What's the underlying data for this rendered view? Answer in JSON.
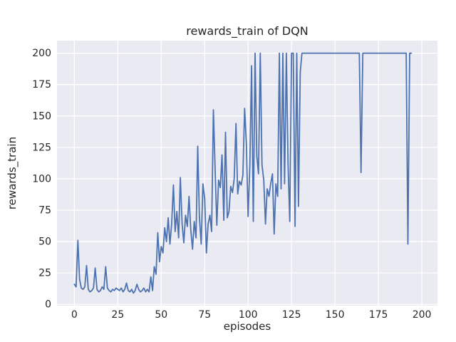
{
  "chart_data": {
    "type": "line",
    "title": "rewards_train of DQN",
    "xlabel": "episodes",
    "ylabel": "rewards_train",
    "x_ticks": [
      0,
      25,
      50,
      75,
      100,
      125,
      150,
      175,
      200
    ],
    "y_ticks": [
      0,
      25,
      50,
      75,
      100,
      125,
      150,
      175,
      200
    ],
    "xlim": [
      -10,
      209
    ],
    "ylim": [
      -1,
      210
    ],
    "grid": true,
    "legend": "none",
    "plot_bg": "#eaeaf2",
    "grid_color": "#ffffff",
    "line_color": "#4c72b0",
    "series": [
      {
        "name": "rewards_train",
        "x_start": 0,
        "x_step": 1,
        "values": [
          16,
          14,
          51,
          20,
          13,
          12,
          14,
          31,
          12,
          10,
          11,
          13,
          29,
          12,
          10,
          11,
          14,
          12,
          30,
          13,
          11,
          10,
          12,
          11,
          13,
          12,
          11,
          13,
          10,
          12,
          17,
          11,
          10,
          12,
          9,
          11,
          16,
          12,
          10,
          11,
          13,
          10,
          12,
          10,
          22,
          11,
          30,
          24,
          57,
          34,
          46,
          41,
          61,
          50,
          69,
          48,
          64,
          95,
          58,
          74,
          53,
          101,
          64,
          49,
          71,
          62,
          86,
          59,
          44,
          66,
          53,
          126,
          69,
          48,
          96,
          84,
          41,
          64,
          71,
          58,
          155,
          108,
          63,
          99,
          93,
          119,
          67,
          137,
          69,
          74,
          94,
          89,
          100,
          144,
          88,
          98,
          95,
          103,
          156,
          128,
          70,
          112,
          190,
          66,
          200,
          118,
          104,
          200,
          111,
          99,
          64,
          92,
          86,
          96,
          104,
          56,
          96,
          86,
          200,
          92,
          200,
          96,
          200,
          111,
          66,
          200,
          200,
          62,
          200,
          78,
          185,
          200,
          200,
          200,
          200,
          200,
          200,
          200,
          200,
          200,
          200,
          200,
          200,
          200,
          200,
          200,
          200,
          200,
          200,
          200,
          200,
          200,
          200,
          200,
          200,
          200,
          200,
          200,
          200,
          200,
          200,
          200,
          200,
          200,
          200,
          105,
          200,
          200,
          200,
          200,
          200,
          200,
          200,
          200,
          200,
          200,
          200,
          200,
          200,
          200,
          200,
          200,
          200,
          200,
          200,
          200,
          200,
          200,
          200,
          200,
          200,
          200,
          48,
          200,
          200
        ]
      }
    ]
  }
}
